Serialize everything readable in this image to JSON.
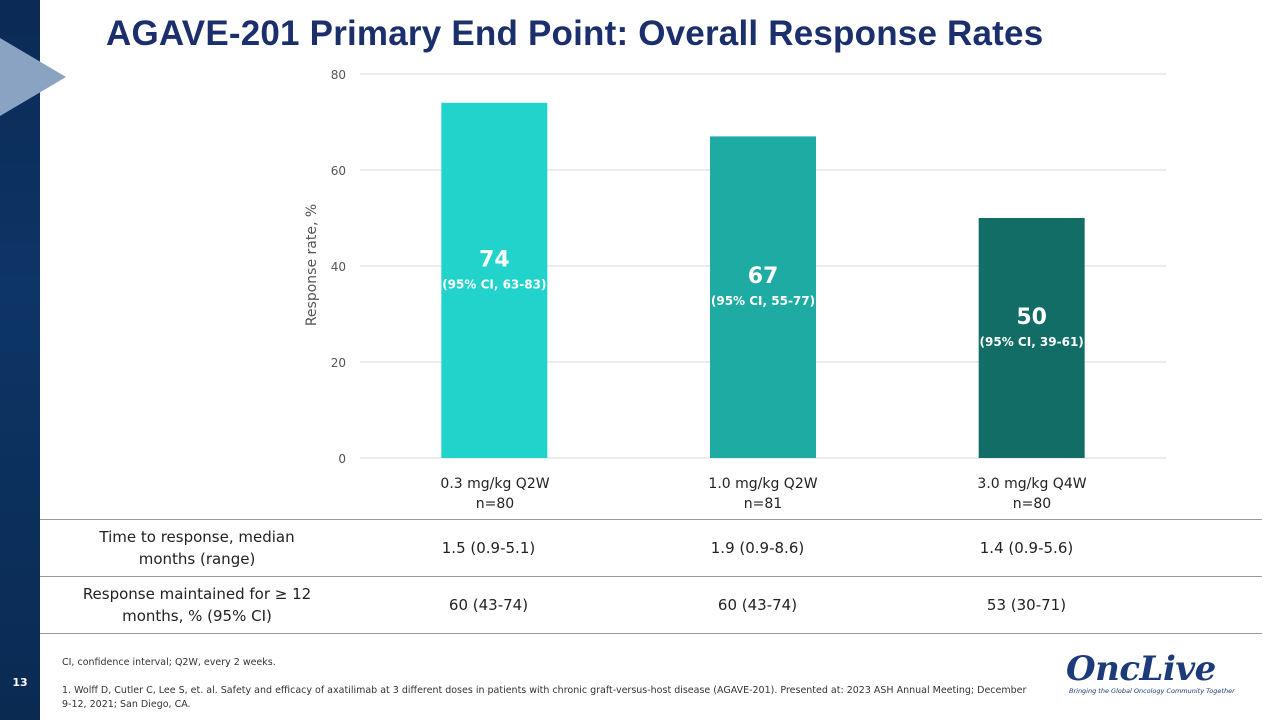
{
  "slide": {
    "number": "13",
    "title": "AGAVE-201 Primary End Point: Overall Response Rates"
  },
  "chart_data": {
    "type": "bar",
    "title": "",
    "xlabel": "",
    "ylabel": "Response rate, %",
    "ylim": [
      0,
      80
    ],
    "yticks": [
      "0",
      "20",
      "40",
      "60",
      "80"
    ],
    "grid": true,
    "categories": [
      "0.3 mg/kg Q2W",
      "1.0 mg/kg Q2W",
      "3.0 mg/kg Q4W"
    ],
    "n_labels": [
      "n=80",
      "n=81",
      "n=80"
    ],
    "values": [
      74,
      67,
      50
    ],
    "value_labels": [
      "74",
      "67",
      "50"
    ],
    "ci_labels": [
      "(95% CI, 63-83)",
      "(95% CI, 55-77)",
      "(95% CI, 39-61)"
    ],
    "colors": [
      "#22d3cc",
      "#1eaba4",
      "#126d66"
    ],
    "grid_color": "#d9d9d9"
  },
  "table": {
    "rows": [
      {
        "label_line1": "Time to response, median",
        "label_line2": "months (range)",
        "values": [
          "1.5 (0.9-5.1)",
          "1.9 (0.9-8.6)",
          "1.4 (0.9-5.6)"
        ]
      },
      {
        "label_line1": "Response maintained for ≥ 12",
        "label_line2": "months, % (95% CI)",
        "values": [
          "60 (43-74)",
          "60 (43-74)",
          "53 (30-71)"
        ]
      }
    ]
  },
  "footnotes": {
    "abbrev": "CI, confidence interval; Q2W, every 2 weeks.",
    "ref_line1": "1. Wolff D, Cutler C, Lee S, et. al. Safety and efficacy of axatilimab at 3 different doses in patients with chronic graft-versus-host disease (AGAVE-201). Presented at: 2023 ASH Annual Meeting; December",
    "ref_line2": "9-12, 2021; San Diego, CA."
  },
  "logo": {
    "wordmark": "OncLive",
    "tagline": "Bringing the Global Oncology Community Together"
  },
  "colors": {
    "sidebar": "#0b2a55",
    "title": "#1a2f6b",
    "arrow": "#8aa3c2"
  }
}
